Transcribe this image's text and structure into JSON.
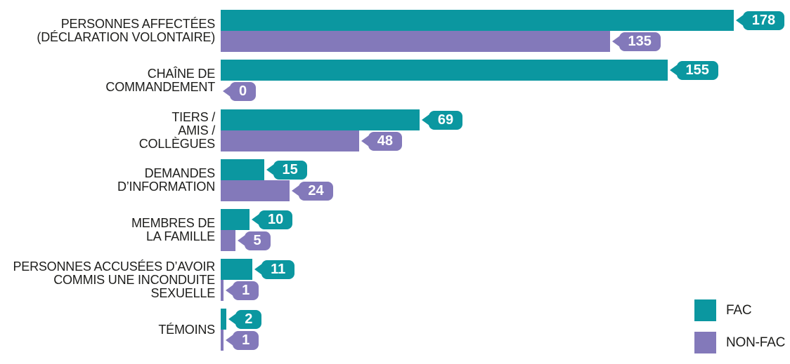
{
  "chart_data": {
    "type": "bar",
    "orientation": "horizontal",
    "title": "",
    "xlabel": "",
    "ylabel": "",
    "xlim": [
      0,
      195
    ],
    "grid": false,
    "legend_position": "bottom-right",
    "value_labels": "bubble-tags-at-bar-end",
    "categories": [
      {
        "label": "PERSONNES AFFECTÉES\n(DÉCLARATION VOLONTAIRE)"
      },
      {
        "label": "CHAÎNE DE\nCOMMANDEMENT"
      },
      {
        "label": "TIERS /\nAMIS /\nCOLLÈGUES"
      },
      {
        "label": "DEMANDES\nD’INFORMATION"
      },
      {
        "label": "MEMBRES DE\nLA FAMILLE"
      },
      {
        "label": "PERSONNES ACCUSÉES D’AVOIR\nCOMMIS UNE INCONDUITE SEXUELLE"
      },
      {
        "label": "TÉMOINS"
      }
    ],
    "series": [
      {
        "name": "FAC",
        "color": "#0b97a0",
        "values": [
          178,
          155,
          69,
          15,
          10,
          11,
          2
        ]
      },
      {
        "name": "NON-FAC",
        "color": "#8379ba",
        "values": [
          135,
          0,
          48,
          24,
          5,
          1,
          1
        ]
      }
    ],
    "colors": {
      "fac": "#0b97a0",
      "non_fac": "#8379ba",
      "value_text": "#ffffff",
      "label_text": "#1d1d1b"
    }
  }
}
